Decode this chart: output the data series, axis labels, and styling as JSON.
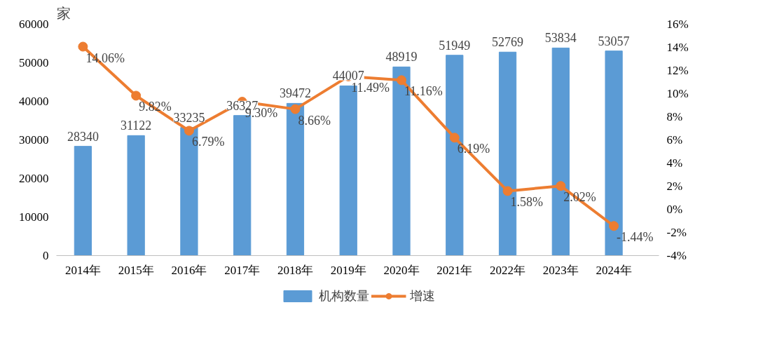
{
  "chart_data": {
    "type": "bar",
    "ylabel": "家",
    "categories": [
      "2014年",
      "2015年",
      "2016年",
      "2017年",
      "2018年",
      "2019年",
      "2020年",
      "2021年",
      "2022年",
      "2023年",
      "2024年"
    ],
    "series": [
      {
        "name": "机构数量",
        "color": "#5b9bd5",
        "values": [
          28340,
          31122,
          33235,
          36327,
          39472,
          44007,
          48919,
          51949,
          52769,
          53834,
          53057
        ],
        "data_labels": true
      },
      {
        "name": "增速",
        "type": "line",
        "axis": "y2",
        "color": "#ed7d31",
        "marker": "circle",
        "values": [
          14.06,
          9.82,
          6.79,
          9.3,
          8.66,
          11.49,
          11.16,
          6.19,
          1.58,
          2.02,
          -1.44
        ],
        "value_labels": [
          "14.06%",
          "9.82%",
          "6.79%",
          "9.30%",
          "8.66%",
          "11.49%",
          "11.16%",
          "6.19%",
          "1.58%",
          "2.02%",
          "-1.44%"
        ]
      }
    ],
    "ylim": [
      0,
      60000
    ],
    "yticks": [
      0,
      10000,
      20000,
      30000,
      40000,
      50000,
      60000
    ],
    "y2lim": [
      -4,
      16
    ],
    "y2ticks": [
      {
        "value": -4,
        "label": "-4%"
      },
      {
        "value": -2,
        "label": "-2%"
      },
      {
        "value": 0,
        "label": "0%"
      },
      {
        "value": 2,
        "label": "2%"
      },
      {
        "value": 4,
        "label": "4%"
      },
      {
        "value": 6,
        "label": "6%"
      },
      {
        "value": 8,
        "label": "8%"
      },
      {
        "value": 10,
        "label": "10%"
      },
      {
        "value": 12,
        "label": "12%"
      },
      {
        "value": 14,
        "label": "14%"
      },
      {
        "value": 16,
        "label": "16%"
      }
    ],
    "grid": false,
    "legend": "bottom"
  }
}
